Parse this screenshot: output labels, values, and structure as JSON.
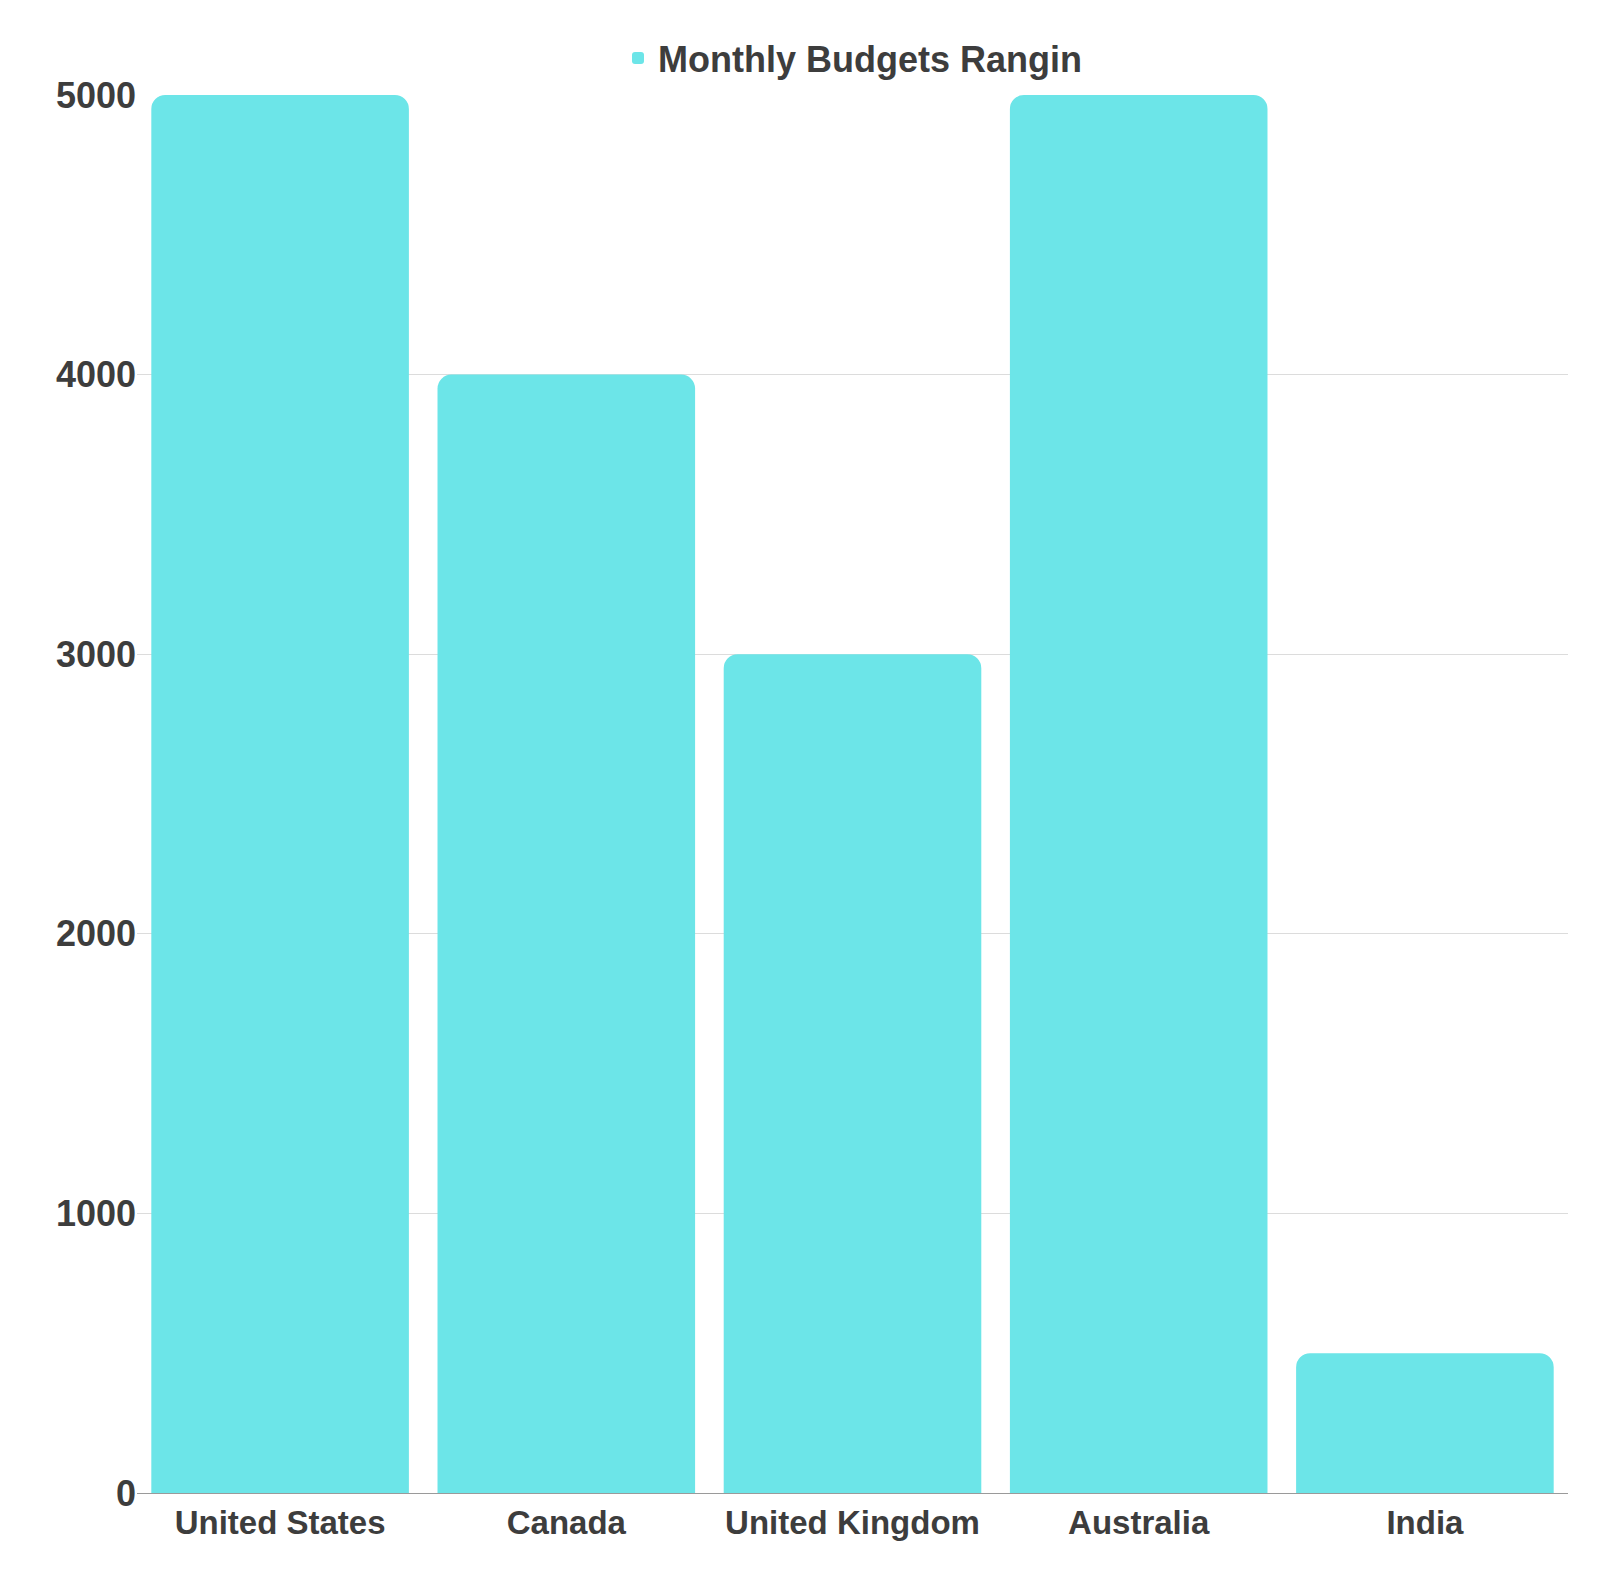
{
  "chart_data": {
    "type": "bar",
    "categories": [
      "United States",
      "Canada",
      "United Kingdom",
      "Australia",
      "India"
    ],
    "series": [
      {
        "name": "Monthly Budgets Rangin",
        "color": "#6ce5e8",
        "values": [
          5000,
          4000,
          3000,
          5000,
          500
        ]
      }
    ],
    "ylim": [
      0,
      5000
    ],
    "yticks": [
      0,
      1000,
      2000,
      3000,
      4000,
      5000
    ],
    "grid": true,
    "legend": "top"
  }
}
